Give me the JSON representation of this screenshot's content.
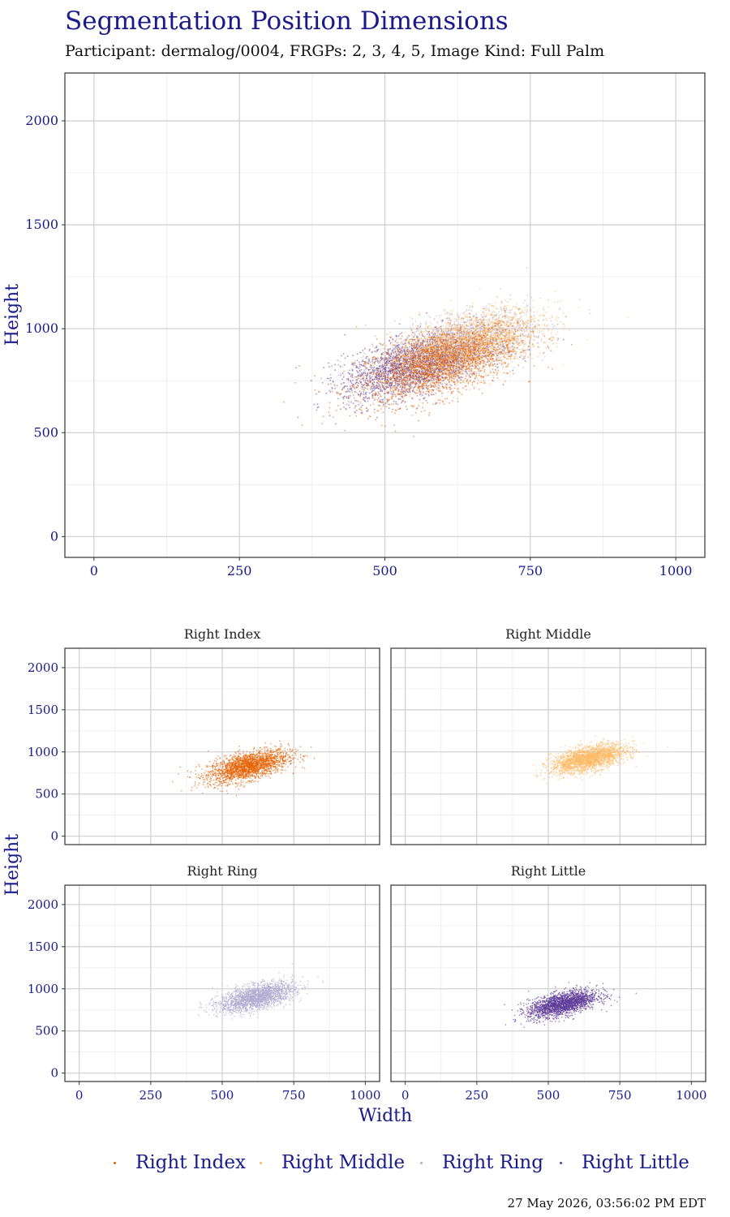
{
  "title": "Segmentation Position Dimensions",
  "subtitle": "Participant: dermalog/0004, FRGPs: 2, 3, 4, 5, Image Kind: Full Palm",
  "timestamp": "27 May 2026, 03:56:02 PM EDT",
  "chart_data": [
    {
      "type": "scatter",
      "title": "",
      "xlabel": "",
      "ylabel": "Height",
      "xlim": [
        -50,
        1050
      ],
      "ylim": [
        -100,
        2230
      ],
      "x_ticks": [
        0,
        250,
        500,
        750,
        1000
      ],
      "y_ticks": [
        0,
        500,
        1000,
        1500,
        2000
      ],
      "grid": true,
      "series": [
        {
          "name": "Right Index",
          "color": "#e66101",
          "center": [
            590,
            830
          ],
          "spread": [
            70,
            95
          ],
          "correlation": 0.55,
          "n": 2200
        },
        {
          "name": "Right Middle",
          "color": "#fdb863",
          "center": [
            640,
            920
          ],
          "spread": [
            65,
            85
          ],
          "correlation": 0.55,
          "n": 2200
        },
        {
          "name": "Right Ring",
          "color": "#b2abd2",
          "center": [
            620,
            900
          ],
          "spread": [
            65,
            85
          ],
          "correlation": 0.55,
          "n": 2200
        },
        {
          "name": "Right Little",
          "color": "#5e3c99",
          "center": [
            550,
            820
          ],
          "spread": [
            60,
            80
          ],
          "correlation": 0.55,
          "n": 2200
        }
      ]
    },
    {
      "type": "scatter",
      "facets": [
        "Right Index",
        "Right Middle",
        "Right Ring",
        "Right Little"
      ],
      "xlabel": "Width",
      "ylabel": "Height",
      "xlim": [
        -50,
        1050
      ],
      "ylim": [
        -100,
        2230
      ],
      "x_ticks": [
        0,
        250,
        500,
        750,
        1000
      ],
      "y_ticks": [
        0,
        500,
        1000,
        1500,
        2000
      ],
      "grid": true
    }
  ],
  "legend": {
    "placement": "bottom",
    "items": [
      {
        "label": "Right Index",
        "color": "#e66101"
      },
      {
        "label": "Right Middle",
        "color": "#fdb863"
      },
      {
        "label": "Right Ring",
        "color": "#b2abd2"
      },
      {
        "label": "Right Little",
        "color": "#5e3c99"
      }
    ]
  }
}
